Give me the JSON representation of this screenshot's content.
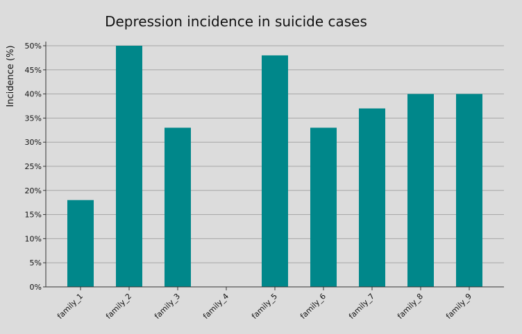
{
  "chart_data": {
    "type": "bar",
    "title": "Depression incidence in suicide cases",
    "xlabel": "",
    "ylabel": "Incidence (%)",
    "categories": [
      "family_1",
      "family_2",
      "family_3",
      "family_4",
      "family_5",
      "family_6",
      "family_7",
      "family_8",
      "family_9"
    ],
    "values": [
      18,
      50,
      33,
      0,
      48,
      33,
      37,
      40,
      40
    ],
    "ylim": [
      0,
      50
    ],
    "yticks": [
      "0%",
      "5%",
      "10%",
      "15%",
      "20%",
      "25%",
      "30%",
      "35%",
      "40%",
      "45%",
      "50%"
    ],
    "grid": true,
    "bar_color": "#00878a",
    "background_color": "#dcdcdc"
  }
}
